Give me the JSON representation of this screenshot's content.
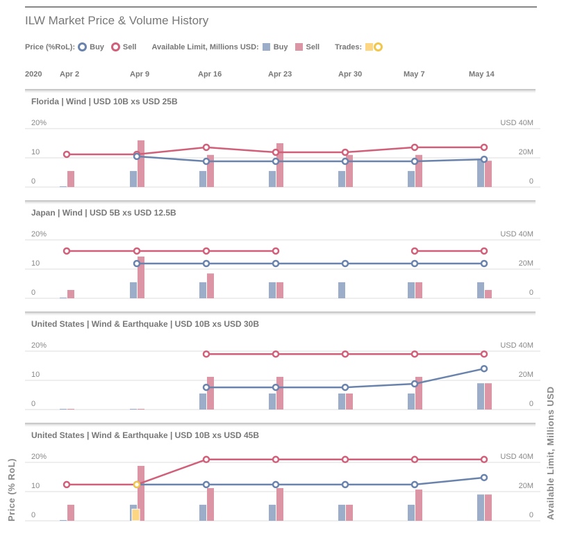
{
  "title": "ILW Market Price & Volume History",
  "legend": {
    "price_label": "Price (%RoL):",
    "price_buy": "Buy",
    "price_sell": "Sell",
    "limit_label": "Available Limit, Millions USD:",
    "limit_buy": "Buy",
    "limit_sell": "Sell",
    "trades_label": "Trades:"
  },
  "colors": {
    "buy_line": "#6a83ac",
    "buy_bar": "#9badc8",
    "sell_line": "#d0607a",
    "sell_bar": "#dc95a4",
    "trade_bar": "#fdd684",
    "trade_line": "#f0c64c",
    "grid": "#dddddd"
  },
  "year": "2020",
  "dates": [
    "Apr 2",
    "Apr 9",
    "Apr 16",
    "Apr 23",
    "Apr 30",
    "May 7",
    "May 14"
  ],
  "axes": {
    "left_title": "Price (% RoL)",
    "right_title": "Available Limit, Millions USD",
    "left_ticks": [
      "0",
      "10",
      "20%"
    ],
    "right_ticks": [
      "0",
      "20M",
      "USD 40M"
    ],
    "price_range": [
      0,
      20
    ],
    "limit_range": [
      0,
      40
    ]
  },
  "chart_data": [
    {
      "type": "bar+line",
      "title": "Florida | Wind | USD 10B xs USD 25B",
      "categories": [
        "Apr 2",
        "Apr 9",
        "Apr 16",
        "Apr 23",
        "Apr 30",
        "May 7",
        "May 14"
      ],
      "price_buy": [
        null,
        10.5,
        8.8,
        8.8,
        8.8,
        8.8,
        9.5
      ],
      "price_sell": [
        11.2,
        11.2,
        13.6,
        11.9,
        11.9,
        13.6,
        13.6
      ],
      "limit_buy": [
        0.5,
        11,
        11,
        11,
        11,
        11,
        18.6
      ],
      "limit_sell": [
        11,
        32,
        22,
        30,
        22,
        22,
        18
      ],
      "trades": []
    },
    {
      "type": "bar+line",
      "title": "Japan | Wind | USD 5B xs USD 12.5B",
      "categories": [
        "Apr 2",
        "Apr 9",
        "Apr 16",
        "Apr 23",
        "Apr 30",
        "May 7",
        "May 14"
      ],
      "price_buy": [
        null,
        11.9,
        11.9,
        11.9,
        11.9,
        11.9,
        11.9
      ],
      "price_sell": [
        16.2,
        16.2,
        16.2,
        16.2,
        null,
        16.2,
        16.2
      ],
      "limit_buy": [
        0.5,
        11,
        11,
        11,
        11,
        11,
        11
      ],
      "limit_sell": [
        5.7,
        28.6,
        17,
        11,
        0,
        11,
        5.7
      ],
      "trades": []
    },
    {
      "type": "bar+line",
      "title": "United States | Wind & Earthquake | USD 10B xs USD 30B",
      "categories": [
        "Apr 2",
        "Apr 9",
        "Apr 16",
        "Apr 23",
        "Apr 30",
        "May 7",
        "May 14"
      ],
      "price_buy": [
        null,
        null,
        7.6,
        7.6,
        7.6,
        8.8,
        14
      ],
      "price_sell": [
        null,
        null,
        19,
        19,
        19,
        19,
        19
      ],
      "limit_buy": [
        0.5,
        0.5,
        11,
        11,
        11,
        11,
        18
      ],
      "limit_sell": [
        0.5,
        0.5,
        22.4,
        22.4,
        11,
        22.4,
        18
      ],
      "trades": []
    },
    {
      "type": "bar+line",
      "title": "United States | Wind & Earthquake | USD 10B xs USD 45B",
      "categories": [
        "Apr 2",
        "Apr 9",
        "Apr 16",
        "Apr 23",
        "Apr 30",
        "May 7",
        "May 14"
      ],
      "price_buy": [
        null,
        12.4,
        12.4,
        12.4,
        12.4,
        12.4,
        14.8
      ],
      "price_sell": [
        12.4,
        12.4,
        21,
        21,
        21,
        21,
        21
      ],
      "limit_buy": [
        0.5,
        11,
        11,
        11,
        11,
        11,
        18
      ],
      "limit_sell": [
        11,
        37.6,
        22.4,
        22.4,
        11,
        21.4,
        18
      ],
      "trades": [
        {
          "date": "Apr 9",
          "price": 12.4,
          "limit": 8
        }
      ]
    }
  ]
}
